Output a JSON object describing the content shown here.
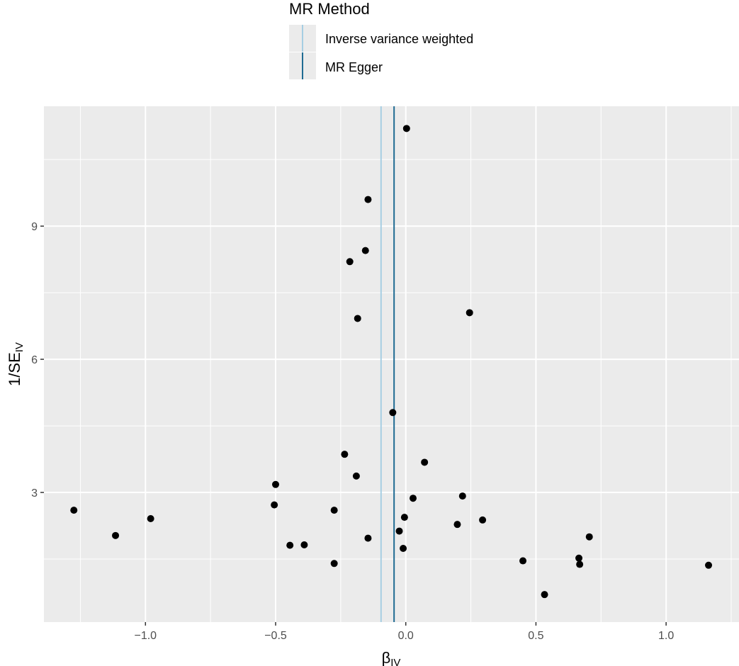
{
  "chart_data": {
    "type": "scatter",
    "xlabel_main": "β",
    "xlabel_sub": "IV",
    "ylabel_main": "1/SE",
    "ylabel_sub": "IV",
    "xlim": [
      -1.39,
      1.28
    ],
    "ylim": [
      0.08,
      11.7
    ],
    "x_ticks": [
      -1.0,
      -0.5,
      0.0,
      0.5,
      1.0
    ],
    "x_tick_labels": [
      "−1.0",
      "−0.5",
      "0.0",
      "0.5",
      "1.0"
    ],
    "y_ticks": [
      3,
      6,
      9
    ],
    "y_tick_labels": [
      "3",
      "6",
      "9"
    ],
    "grid": true,
    "legend": {
      "title": "MR Method",
      "placement": "top",
      "entries": [
        {
          "label": "Inverse variance weighted",
          "color": "#a6cee3"
        },
        {
          "label": "MR Egger",
          "color": "#1f6b93"
        }
      ]
    },
    "vlines": [
      {
        "method": "Inverse variance weighted",
        "x": -0.095,
        "color": "#a6cee3"
      },
      {
        "method": "MR Egger",
        "x": -0.045,
        "color": "#1f6b93"
      }
    ],
    "points": [
      {
        "x": 0.003,
        "y": 11.2
      },
      {
        "x": -0.145,
        "y": 9.6
      },
      {
        "x": -0.155,
        "y": 8.45
      },
      {
        "x": -0.215,
        "y": 8.2
      },
      {
        "x": 0.245,
        "y": 7.05
      },
      {
        "x": -0.185,
        "y": 6.92
      },
      {
        "x": -0.05,
        "y": 4.8
      },
      {
        "x": -0.235,
        "y": 3.86
      },
      {
        "x": 0.072,
        "y": 3.68
      },
      {
        "x": -0.19,
        "y": 3.37
      },
      {
        "x": -0.5,
        "y": 3.18
      },
      {
        "x": 0.218,
        "y": 2.92
      },
      {
        "x": 0.028,
        "y": 2.87
      },
      {
        "x": -1.275,
        "y": 2.6
      },
      {
        "x": -0.505,
        "y": 2.72
      },
      {
        "x": -0.275,
        "y": 2.6
      },
      {
        "x": -0.98,
        "y": 2.41
      },
      {
        "x": -0.005,
        "y": 2.44
      },
      {
        "x": 0.295,
        "y": 2.38
      },
      {
        "x": 0.198,
        "y": 2.28
      },
      {
        "x": -0.025,
        "y": 2.13
      },
      {
        "x": -1.115,
        "y": 2.03
      },
      {
        "x": 0.705,
        "y": 2.0
      },
      {
        "x": -0.145,
        "y": 1.97
      },
      {
        "x": -0.445,
        "y": 1.81
      },
      {
        "x": -0.39,
        "y": 1.82
      },
      {
        "x": -0.01,
        "y": 1.74
      },
      {
        "x": 0.665,
        "y": 1.52
      },
      {
        "x": 0.45,
        "y": 1.46
      },
      {
        "x": -0.275,
        "y": 1.4
      },
      {
        "x": 0.668,
        "y": 1.38
      },
      {
        "x": 1.163,
        "y": 1.36
      },
      {
        "x": 0.533,
        "y": 0.7
      }
    ]
  }
}
